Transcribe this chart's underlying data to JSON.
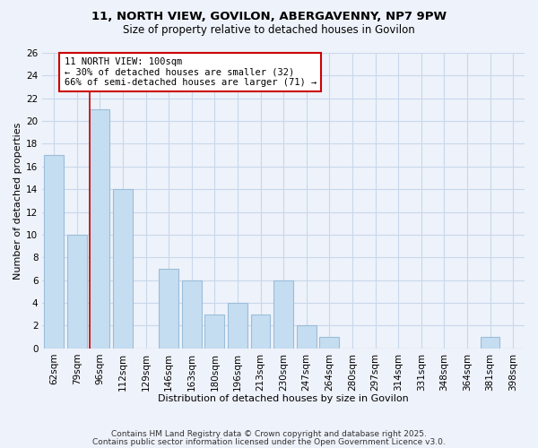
{
  "title_line1": "11, NORTH VIEW, GOVILON, ABERGAVENNY, NP7 9PW",
  "title_line2": "Size of property relative to detached houses in Govilon",
  "xlabel": "Distribution of detached houses by size in Govilon",
  "ylabel": "Number of detached properties",
  "bar_labels": [
    "62sqm",
    "79sqm",
    "96sqm",
    "112sqm",
    "129sqm",
    "146sqm",
    "163sqm",
    "180sqm",
    "196sqm",
    "213sqm",
    "230sqm",
    "247sqm",
    "264sqm",
    "280sqm",
    "297sqm",
    "314sqm",
    "331sqm",
    "348sqm",
    "364sqm",
    "381sqm",
    "398sqm"
  ],
  "bar_values": [
    17,
    10,
    21,
    14,
    0,
    7,
    6,
    3,
    4,
    3,
    6,
    2,
    1,
    0,
    0,
    0,
    0,
    0,
    0,
    1,
    0
  ],
  "bar_color": "#c5ddf0",
  "bar_edge_color": "#9bbdd8",
  "grid_color": "#c8d8ec",
  "property_line_index": 2,
  "property_line_color": "#cc0000",
  "annotation_title": "11 NORTH VIEW: 100sqm",
  "annotation_line1": "← 30% of detached houses are smaller (32)",
  "annotation_line2": "66% of semi-detached houses are larger (71) →",
  "annotation_box_facecolor": "#ffffff",
  "annotation_box_edgecolor": "#cc0000",
  "ylim": [
    0,
    26
  ],
  "yticks": [
    0,
    2,
    4,
    6,
    8,
    10,
    12,
    14,
    16,
    18,
    20,
    22,
    24,
    26
  ],
  "footer_line1": "Contains HM Land Registry data © Crown copyright and database right 2025.",
  "footer_line2": "Contains public sector information licensed under the Open Government Licence v3.0.",
  "background_color": "#eef2fa",
  "title_fontsize": 9.5,
  "subtitle_fontsize": 8.5,
  "axis_label_fontsize": 8,
  "tick_fontsize": 7.5,
  "footer_fontsize": 6.5
}
